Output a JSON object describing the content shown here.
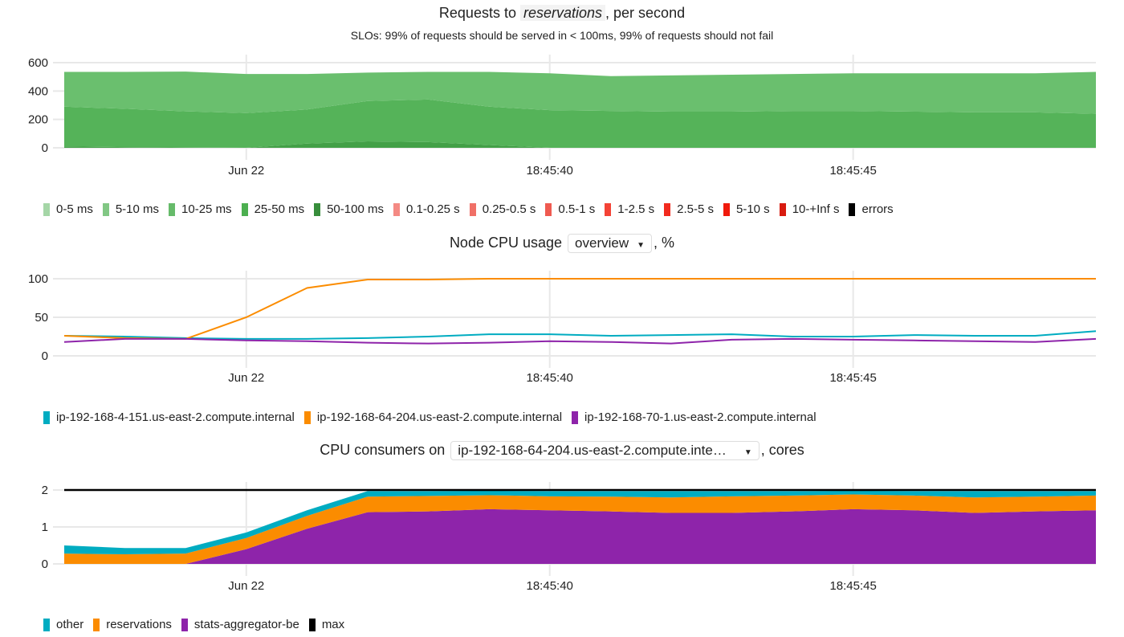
{
  "chart_data": [
    {
      "type": "area",
      "stacked": true,
      "title_prefix": "Requests to",
      "title_service": "reservations",
      "title_suffix": ", per second",
      "subtitle": "SLOs: 99% of requests should be served in < 100ms, 99% of requests should not fail",
      "ylim": [
        0,
        600
      ],
      "yticks": [
        0,
        200,
        400,
        600
      ],
      "grid": true,
      "legend": "bottom",
      "x": [
        "18:45:32",
        "18:45:33",
        "18:45:34",
        "18:45:35",
        "18:45:36",
        "18:45:37",
        "18:45:38",
        "18:45:39",
        "18:45:40",
        "18:45:41",
        "18:45:42",
        "18:45:43",
        "18:45:44",
        "18:45:45",
        "18:45:46",
        "18:45:47",
        "18:45:48",
        "18:45:49"
      ],
      "xticks": [
        {
          "x": "18:45:35",
          "label": "Jun 22"
        },
        {
          "x": "18:45:40",
          "label": "18:45:40"
        },
        {
          "x": "18:45:45",
          "label": "18:45:45"
        }
      ],
      "series": [
        {
          "name": "50-100 ms",
          "color": "#43a047",
          "values": [
            10,
            5,
            2,
            0,
            30,
            45,
            40,
            20,
            0,
            0,
            0,
            0,
            0,
            0,
            0,
            0,
            0,
            0
          ]
        },
        {
          "name": "25-50 ms",
          "color": "#55b359",
          "values": [
            280,
            270,
            255,
            245,
            240,
            285,
            300,
            270,
            265,
            260,
            255,
            255,
            260,
            260,
            255,
            250,
            250,
            240
          ]
        },
        {
          "name": "10-25 ms",
          "color": "#6abf6e",
          "values": [
            245,
            260,
            280,
            275,
            250,
            200,
            195,
            245,
            260,
            245,
            255,
            260,
            260,
            265,
            270,
            275,
            275,
            295
          ]
        },
        {
          "name": "5-10 ms",
          "color": "#81c784",
          "values": [
            0,
            0,
            0,
            0,
            0,
            0,
            0,
            0,
            0,
            0,
            0,
            0,
            0,
            0,
            0,
            0,
            0,
            0
          ]
        },
        {
          "name": "0-5 ms",
          "color": "#a5d6a7",
          "values": [
            0,
            0,
            0,
            0,
            0,
            0,
            0,
            0,
            0,
            0,
            0,
            0,
            0,
            0,
            0,
            0,
            0,
            0
          ]
        }
      ],
      "legend_items": [
        {
          "name": "0-5 ms",
          "color": "#a5d6a7"
        },
        {
          "name": "5-10 ms",
          "color": "#81c784"
        },
        {
          "name": "10-25 ms",
          "color": "#66bb6a"
        },
        {
          "name": "25-50 ms",
          "color": "#4caf50"
        },
        {
          "name": "50-100 ms",
          "color": "#388e3c"
        },
        {
          "name": "0.1-0.25 s",
          "color": "#f48a84"
        },
        {
          "name": "0.25-0.5 s",
          "color": "#f07067"
        },
        {
          "name": "0.5-1 s",
          "color": "#ef5a50"
        },
        {
          "name": "1-2.5 s",
          "color": "#f44336"
        },
        {
          "name": "2.5-5 s",
          "color": "#f22a1e"
        },
        {
          "name": "5-10 s",
          "color": "#f01a0c"
        },
        {
          "name": "10-+Inf s",
          "color": "#d81b10"
        },
        {
          "name": "errors",
          "color": "#000000"
        }
      ]
    },
    {
      "type": "line",
      "title": "Node CPU usage",
      "selector": "overview",
      "title_suffix": ", %",
      "ylim": [
        0,
        100
      ],
      "yticks": [
        0,
        50,
        100
      ],
      "grid": true,
      "legend": "bottom",
      "series": [
        {
          "name": "ip-192-168-4-151.us-east-2.compute.internal",
          "color": "#00acc1",
          "values": [
            26,
            25,
            23,
            22,
            22,
            23,
            25,
            28,
            28,
            26,
            27,
            28,
            25,
            25,
            27,
            26,
            26,
            32
          ]
        },
        {
          "name": "ip-192-168-64-204.us-east-2.compute.internal",
          "color": "#fb8c00",
          "values": [
            26,
            23,
            22,
            50,
            88,
            99,
            99,
            100,
            100,
            100,
            100,
            100,
            100,
            100,
            100,
            100,
            100,
            100
          ]
        },
        {
          "name": "ip-192-168-70-1.us-east-2.compute.internal",
          "color": "#8e24aa",
          "values": [
            18,
            22,
            22,
            20,
            19,
            17,
            16,
            17,
            19,
            18,
            16,
            21,
            22,
            21,
            20,
            19,
            18,
            22
          ]
        }
      ]
    },
    {
      "type": "area",
      "stacked": true,
      "title": "CPU consumers on",
      "selector": "ip-192-168-64-204.us-east-2.compute.inte…",
      "title_suffix": ", cores",
      "ylim": [
        0,
        2
      ],
      "yticks": [
        0,
        1,
        2
      ],
      "grid": true,
      "legend": "bottom",
      "series": [
        {
          "name": "stats-aggregator-be",
          "color": "#8e24aa",
          "values": [
            0,
            0,
            0,
            0.4,
            0.95,
            1.4,
            1.42,
            1.48,
            1.45,
            1.42,
            1.38,
            1.38,
            1.42,
            1.48,
            1.45,
            1.38,
            1.42,
            1.45
          ]
        },
        {
          "name": "reservations",
          "color": "#fb8c00",
          "values": [
            0.28,
            0.26,
            0.28,
            0.3,
            0.35,
            0.42,
            0.42,
            0.38,
            0.38,
            0.4,
            0.42,
            0.45,
            0.43,
            0.4,
            0.4,
            0.42,
            0.4,
            0.4
          ]
        },
        {
          "name": "other",
          "color": "#00acc1",
          "values": [
            0.22,
            0.17,
            0.15,
            0.15,
            0.15,
            0.15,
            0.13,
            0.12,
            0.14,
            0.15,
            0.17,
            0.14,
            0.12,
            0.1,
            0.12,
            0.17,
            0.15,
            0.12
          ]
        }
      ],
      "lines": [
        {
          "name": "max",
          "color": "#000000",
          "values": [
            2,
            2,
            2,
            2,
            2,
            2,
            2,
            2,
            2,
            2,
            2,
            2,
            2,
            2,
            2,
            2,
            2,
            2
          ]
        }
      ],
      "legend_items": [
        {
          "name": "other",
          "color": "#00acc1"
        },
        {
          "name": "reservations",
          "color": "#fb8c00"
        },
        {
          "name": "stats-aggregator-be",
          "color": "#8e24aa"
        },
        {
          "name": "max",
          "color": "#000000"
        }
      ]
    }
  ]
}
